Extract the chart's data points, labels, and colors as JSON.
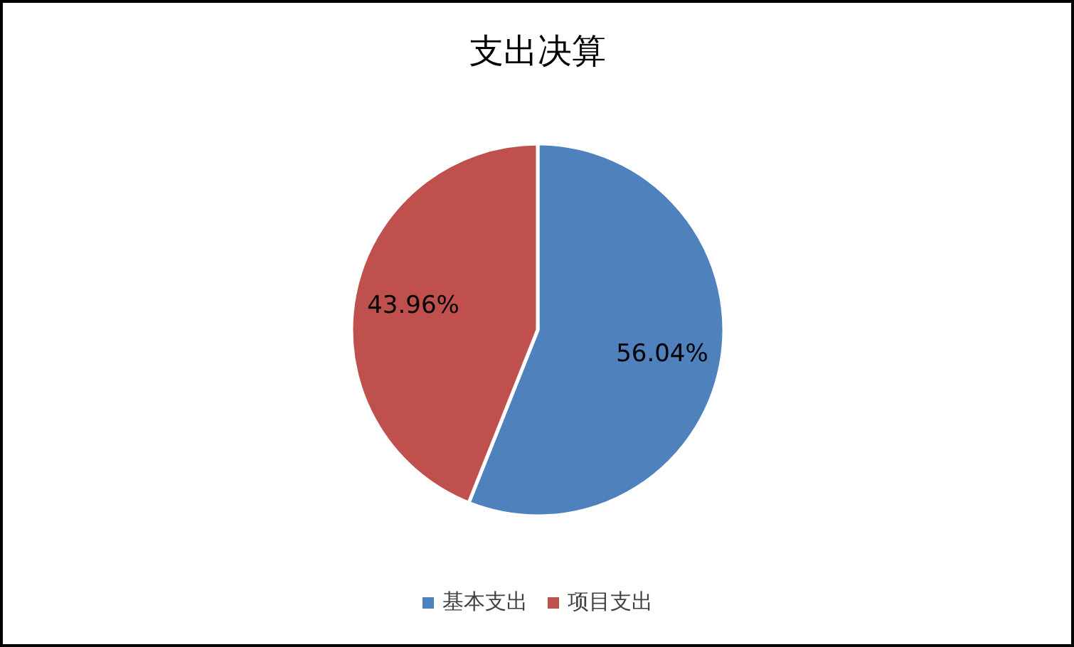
{
  "chart_data": {
    "type": "pie",
    "title": "支出决算",
    "categories": [
      "基本支出",
      "项目支出"
    ],
    "values": [
      56.04,
      43.96
    ],
    "colors": [
      "#4f81bd",
      "#c0504d"
    ],
    "value_labels": [
      "56.04%",
      "43.96%"
    ],
    "legend": "bottom"
  }
}
